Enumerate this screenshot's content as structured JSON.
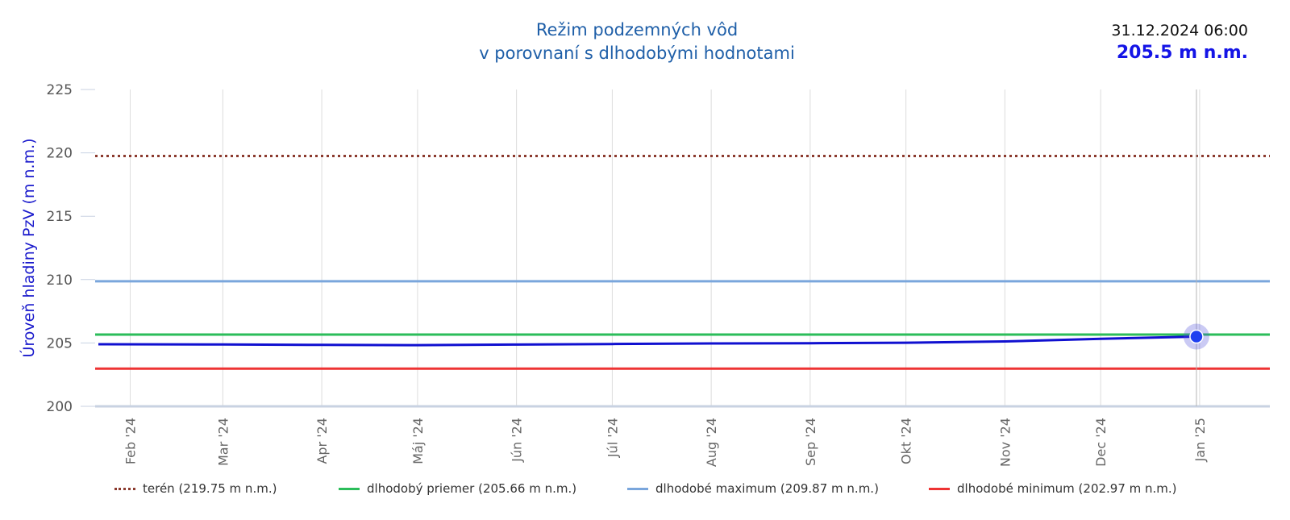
{
  "header": {
    "title_line1": "Režim podzemných vôd",
    "title_line2": "v porovnaní s dlhodobými hodnotami"
  },
  "readout": {
    "datetime": "31.12.2024 06:00",
    "value": "205.5 m n.m."
  },
  "chart_data": {
    "type": "line",
    "ylabel": "Úroveň hladiny PzV (m n.m.)",
    "xlabel": "",
    "ylim": [
      200,
      225
    ],
    "yticks": [
      200,
      205,
      210,
      215,
      220,
      225
    ],
    "xlim": [
      "2024-01-21",
      "2025-01-23"
    ],
    "xticks": [
      {
        "date": "2024-02-01",
        "label": "Feb '24"
      },
      {
        "date": "2024-03-01",
        "label": "Mar '24"
      },
      {
        "date": "2024-04-01",
        "label": "Apr '24"
      },
      {
        "date": "2024-05-01",
        "label": "Máj '24"
      },
      {
        "date": "2024-06-01",
        "label": "Jún '24"
      },
      {
        "date": "2024-07-01",
        "label": "Júl '24"
      },
      {
        "date": "2024-08-01",
        "label": "Aug '24"
      },
      {
        "date": "2024-09-01",
        "label": "Sep '24"
      },
      {
        "date": "2024-10-01",
        "label": "Okt '24"
      },
      {
        "date": "2024-11-01",
        "label": "Nov '24"
      },
      {
        "date": "2024-12-01",
        "label": "Dec '24"
      },
      {
        "date": "2025-01-01",
        "label": "Jan '25"
      }
    ],
    "grid": true,
    "legend_position": "bottom",
    "reference_lines": [
      {
        "name": "terén (219.75 m n.m.)",
        "value": 219.75,
        "color": "#8b3a2e",
        "style": "dotted"
      },
      {
        "name": "dlhodobý priemer (205.66 m n.m.)",
        "value": 205.66,
        "color": "#2bbd5a",
        "style": "solid"
      },
      {
        "name": "dlhodobé maximum (209.87 m n.m.)",
        "value": 209.87,
        "color": "#7aa6dc",
        "style": "solid"
      },
      {
        "name": "dlhodobé minimum (202.97 m n.m.)",
        "value": 202.97,
        "color": "#ee3333",
        "style": "solid"
      }
    ],
    "series": [
      {
        "color": "#1010d0",
        "points": [
          {
            "x": "2024-01-22",
            "y": 204.9
          },
          {
            "x": "2024-03-01",
            "y": 204.88
          },
          {
            "x": "2024-04-01",
            "y": 204.85
          },
          {
            "x": "2024-05-01",
            "y": 204.83
          },
          {
            "x": "2024-06-01",
            "y": 204.87
          },
          {
            "x": "2024-07-01",
            "y": 204.92
          },
          {
            "x": "2024-08-01",
            "y": 204.96
          },
          {
            "x": "2024-09-01",
            "y": 204.98
          },
          {
            "x": "2024-10-01",
            "y": 205.02
          },
          {
            "x": "2024-11-01",
            "y": 205.12
          },
          {
            "x": "2024-12-01",
            "y": 205.33
          },
          {
            "x": "2024-12-31",
            "y": 205.5
          }
        ]
      }
    ],
    "highlight": {
      "x": "2024-12-31",
      "y": 205.5
    }
  }
}
